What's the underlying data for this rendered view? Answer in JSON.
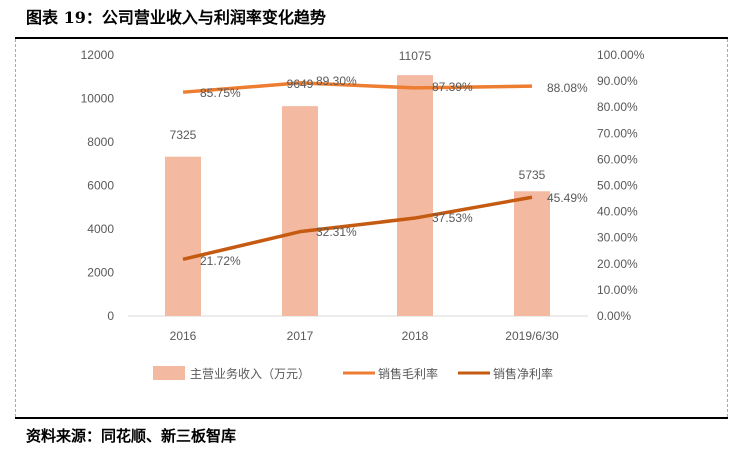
{
  "title": "图表 19：公司营业收入与利润率变化趋势",
  "source": "资料来源：同花顺、新三板智库",
  "chart_data": {
    "type": "bar+line",
    "categories": [
      "2016",
      "2017",
      "2018",
      "2019/6/30"
    ],
    "series": [
      {
        "name": "主营业务收入（万元）",
        "type": "bar",
        "axis": "left",
        "values": [
          7325,
          9649,
          11075,
          5735
        ],
        "labels": [
          "7325",
          "9649",
          "11075",
          "5735"
        ],
        "color": "#F4B9A1"
      },
      {
        "name": "销售毛利率",
        "type": "line",
        "axis": "right",
        "values": [
          85.75,
          89.3,
          87.39,
          88.08
        ],
        "labels": [
          "85.75%",
          "89.30%",
          "87.39%",
          "88.08%"
        ],
        "color": "#ED7D31"
      },
      {
        "name": "销售净利率",
        "type": "line",
        "axis": "right",
        "values": [
          21.72,
          32.31,
          37.53,
          45.49
        ],
        "labels": [
          "21.72%",
          "32.31%",
          "37.53%",
          "45.49%"
        ],
        "color": "#C55A11"
      }
    ],
    "left_axis": {
      "ylim": [
        0,
        12000
      ],
      "ticks": [
        "0",
        "2000",
        "4000",
        "6000",
        "8000",
        "10000",
        "12000"
      ]
    },
    "right_axis": {
      "ylim": [
        0,
        100
      ],
      "ticks": [
        "0.00%",
        "10.00%",
        "20.00%",
        "30.00%",
        "40.00%",
        "50.00%",
        "60.00%",
        "70.00%",
        "80.00%",
        "90.00%",
        "100.00%"
      ]
    },
    "grid": false,
    "legend": "bottom"
  }
}
